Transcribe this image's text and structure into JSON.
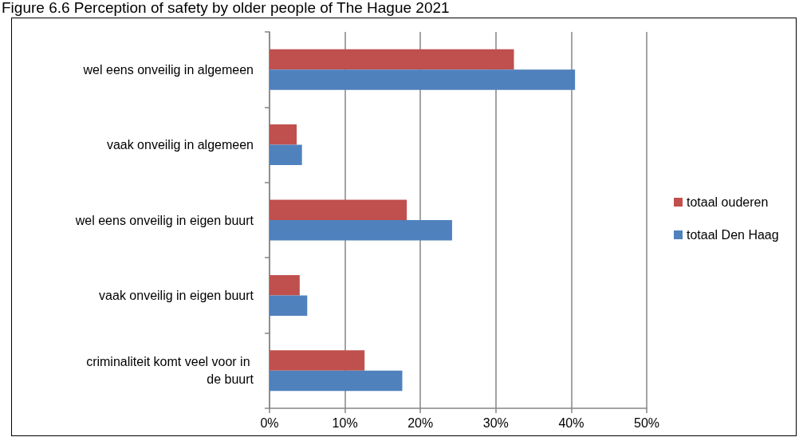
{
  "chart_data": {
    "type": "bar",
    "orientation": "horizontal",
    "title": "Figure 6.6 Perception of safety by older people of The Hague 2021",
    "categories": [
      "wel eens onveilig in algemeen",
      "vaak onveilig in algemeen",
      "wel eens onveilig in eigen buurt",
      "vaak onveilig in eigen buurt",
      "criminaliteit komt veel voor in de buurt"
    ],
    "series": [
      {
        "name": "totaal ouderen",
        "color": "#c0504d",
        "values": [
          32.4,
          3.6,
          18.2,
          4.0,
          12.6
        ]
      },
      {
        "name": "totaal Den Haag",
        "color": "#4f81bd",
        "values": [
          40.5,
          4.3,
          24.2,
          5.0,
          17.6
        ]
      }
    ],
    "xlim": [
      0,
      50
    ],
    "xticks": [
      {
        "value": 0,
        "label": "0%"
      },
      {
        "value": 10,
        "label": "10%"
      },
      {
        "value": 20,
        "label": "20%"
      },
      {
        "value": 30,
        "label": "30%"
      },
      {
        "value": 40,
        "label": "40%"
      },
      {
        "value": 50,
        "label": "50%"
      }
    ],
    "grid": "x",
    "legend": "right"
  }
}
